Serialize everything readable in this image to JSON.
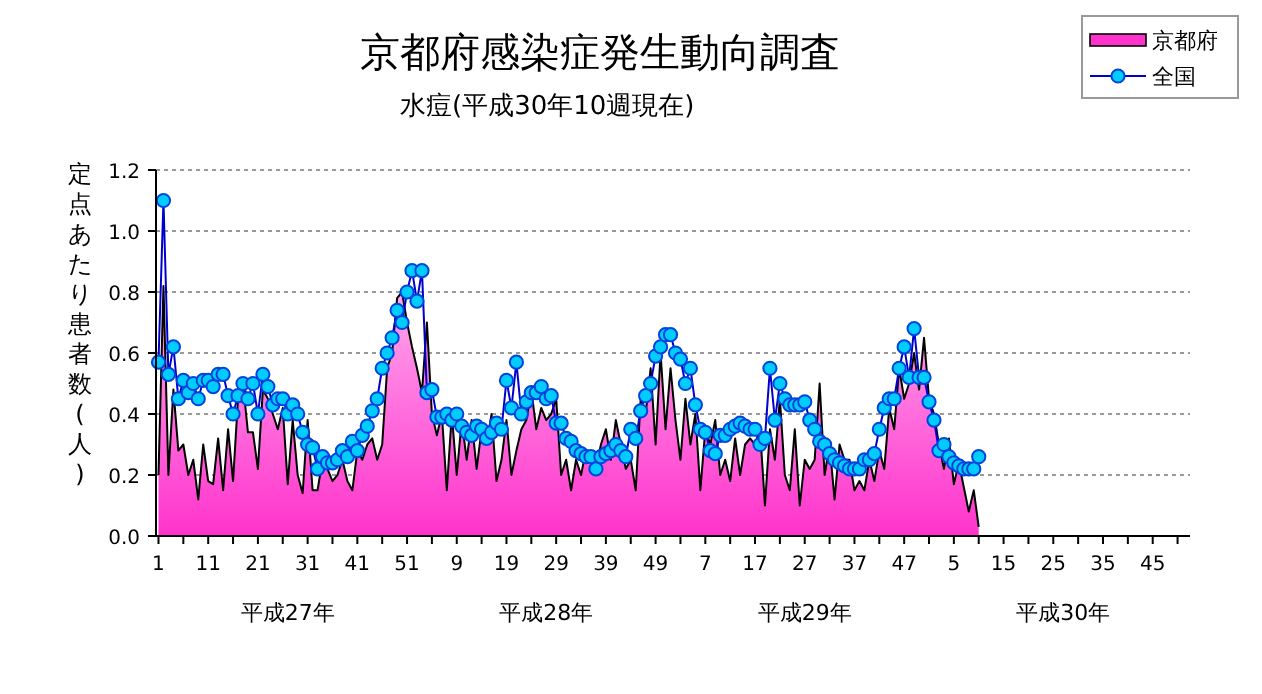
{
  "chart_data": {
    "type": "line",
    "title": "京都府感染症発生動向調査",
    "subtitle": "水痘(平成30年10週現在)",
    "ylabel": "定点あたり患者数(人)",
    "annotations": [
      "平成27年",
      "平成28年",
      "平成29年",
      "平成30年"
    ],
    "categories": [
      "1",
      null,
      null,
      null,
      null,
      null,
      null,
      null,
      null,
      null,
      "11",
      null,
      null,
      null,
      null,
      null,
      null,
      null,
      null,
      null,
      "21",
      null,
      null,
      null,
      null,
      null,
      null,
      null,
      null,
      null,
      "31",
      null,
      null,
      null,
      null,
      null,
      null,
      null,
      null,
      null,
      "41",
      null,
      null,
      null,
      null,
      null,
      null,
      null,
      null,
      null,
      "51",
      null,
      null,
      null,
      null,
      null,
      null,
      null,
      null,
      null,
      "9",
      null,
      null,
      null,
      null,
      null,
      null,
      null,
      null,
      null,
      "19",
      null,
      null,
      null,
      null,
      null,
      null,
      null,
      null,
      null,
      "29",
      null,
      null,
      null,
      null,
      null,
      null,
      null,
      null,
      null,
      "39",
      null,
      null,
      null,
      null,
      null,
      null,
      null,
      null,
      null,
      "49",
      null,
      null,
      null,
      null,
      null,
      null,
      null,
      null,
      null,
      "7",
      null,
      null,
      null,
      null,
      null,
      null,
      null,
      null,
      null,
      "17",
      null,
      null,
      null,
      null,
      null,
      null,
      null,
      null,
      null,
      "27",
      null,
      null,
      null,
      null,
      null,
      null,
      null,
      null,
      null,
      "37",
      null,
      null,
      null,
      null,
      null,
      null,
      null,
      null,
      null,
      "47",
      null,
      null,
      null,
      null,
      null,
      null,
      null,
      null,
      null,
      "5",
      null,
      null,
      null,
      null,
      null,
      null,
      null,
      null,
      null,
      "15",
      null,
      null,
      null,
      null,
      null,
      null,
      null,
      null,
      null,
      "25",
      null,
      null,
      null,
      null,
      null,
      null,
      null,
      null,
      null,
      "35",
      null,
      null,
      null,
      null,
      null,
      null,
      null,
      null,
      null,
      "45",
      null,
      null,
      null,
      null,
      null,
      null,
      null
    ],
    "series": [
      {
        "name": "京都府",
        "type": "area",
        "color": "#ff33cc",
        "values": [
          0.2,
          0.82,
          0.2,
          0.48,
          0.28,
          0.3,
          0.2,
          0.25,
          0.12,
          0.3,
          0.18,
          0.17,
          0.32,
          0.15,
          0.35,
          0.18,
          0.45,
          0.5,
          0.34,
          0.34,
          0.22,
          0.48,
          0.45,
          0.4,
          0.35,
          0.42,
          0.17,
          0.38,
          0.2,
          0.14,
          0.38,
          0.15,
          0.15,
          0.25,
          0.22,
          0.18,
          0.2,
          0.25,
          0.18,
          0.15,
          0.28,
          0.25,
          0.3,
          0.32,
          0.25,
          0.3,
          0.55,
          0.6,
          0.78,
          0.8,
          0.7,
          0.62,
          0.55,
          0.47,
          0.7,
          0.4,
          0.33,
          0.4,
          0.15,
          0.4,
          0.2,
          0.38,
          0.25,
          0.38,
          0.22,
          0.35,
          0.3,
          0.4,
          0.18,
          0.25,
          0.38,
          0.2,
          0.28,
          0.35,
          0.38,
          0.48,
          0.35,
          0.42,
          0.38,
          0.4,
          0.45,
          0.2,
          0.25,
          0.15,
          0.25,
          0.2,
          0.28,
          0.25,
          0.22,
          0.3,
          0.35,
          0.25,
          0.38,
          0.3,
          0.22,
          0.25,
          0.15,
          0.45,
          0.4,
          0.55,
          0.3,
          0.6,
          0.35,
          0.55,
          0.38,
          0.25,
          0.45,
          0.3,
          0.4,
          0.15,
          0.35,
          0.3,
          0.38,
          0.2,
          0.25,
          0.18,
          0.32,
          0.2,
          0.3,
          0.32,
          0.3,
          0.35,
          0.1,
          0.35,
          0.25,
          0.45,
          0.2,
          0.15,
          0.35,
          0.1,
          0.25,
          0.22,
          0.25,
          0.5,
          0.2,
          0.3,
          0.12,
          0.3,
          0.25,
          0.25,
          0.15,
          0.18,
          0.15,
          0.25,
          0.18,
          0.28,
          0.22,
          0.42,
          0.35,
          0.55,
          0.45,
          0.5,
          0.6,
          0.48,
          0.65,
          0.45,
          0.4,
          0.3,
          0.22,
          0.32,
          0.17,
          0.24,
          0.16,
          0.08,
          0.15,
          0.03,
          null,
          null,
          null,
          null,
          null,
          null,
          null,
          null,
          null,
          null,
          null,
          null,
          null,
          null,
          null,
          null,
          null,
          null,
          null,
          null,
          null,
          null,
          null,
          null,
          null,
          null,
          null,
          null,
          null,
          null,
          null,
          null,
          null,
          null,
          null,
          null,
          null,
          null,
          null,
          null,
          null,
          null
        ]
      },
      {
        "name": "全国",
        "type": "line",
        "color": "#00ccff",
        "marker": "circle",
        "values": [
          0.57,
          1.1,
          0.53,
          0.62,
          0.45,
          0.51,
          0.47,
          0.5,
          0.45,
          0.51,
          0.51,
          0.49,
          0.53,
          0.53,
          0.46,
          0.4,
          0.46,
          0.5,
          0.45,
          0.5,
          0.4,
          0.53,
          0.49,
          0.43,
          0.45,
          0.45,
          0.4,
          0.43,
          0.4,
          0.34,
          0.3,
          0.29,
          0.22,
          0.26,
          0.24,
          0.24,
          0.25,
          0.28,
          0.26,
          0.31,
          0.28,
          0.33,
          0.36,
          0.41,
          0.45,
          0.55,
          0.6,
          0.65,
          0.74,
          0.7,
          0.8,
          0.87,
          0.77,
          0.87,
          0.47,
          0.48,
          0.39,
          0.39,
          0.4,
          0.38,
          0.4,
          0.36,
          0.34,
          0.33,
          0.36,
          0.35,
          0.32,
          0.34,
          0.37,
          0.35,
          0.51,
          0.42,
          0.57,
          0.4,
          0.44,
          0.47,
          0.47,
          0.49,
          0.45,
          0.46,
          0.37,
          0.37,
          0.32,
          0.31,
          0.28,
          0.27,
          0.26,
          0.26,
          0.22,
          0.26,
          0.27,
          0.28,
          0.3,
          0.28,
          0.26,
          0.35,
          0.32,
          0.41,
          0.46,
          0.5,
          0.59,
          0.62,
          0.66,
          0.66,
          0.6,
          0.58,
          0.5,
          0.55,
          0.43,
          0.35,
          0.34,
          0.28,
          0.27,
          0.33,
          0.33,
          0.35,
          0.36,
          0.37,
          0.36,
          0.35,
          0.35,
          0.3,
          0.32,
          0.55,
          0.38,
          0.5,
          0.45,
          0.43,
          0.43,
          0.43,
          0.44,
          0.38,
          0.35,
          0.31,
          0.3,
          0.27,
          0.25,
          0.24,
          0.23,
          0.22,
          0.22,
          0.22,
          0.25,
          0.25,
          0.27,
          0.35,
          0.42,
          0.45,
          0.45,
          0.55,
          0.62,
          0.52,
          0.68,
          0.52,
          0.52,
          0.44,
          0.38,
          0.28,
          0.3,
          0.26,
          0.24,
          0.23,
          0.22,
          0.22,
          0.22,
          0.26,
          null,
          null,
          null,
          null,
          null,
          null,
          null,
          null,
          null,
          null,
          null,
          null,
          null,
          null,
          null,
          null,
          null,
          null,
          null,
          null,
          null,
          null,
          null,
          null,
          null,
          null,
          null,
          null,
          null,
          null,
          null,
          null,
          null,
          null,
          null,
          null,
          null,
          null,
          null,
          null,
          null,
          null
        ]
      }
    ],
    "ylim": [
      0,
      1.2
    ],
    "yticks": [
      {
        "value": 0,
        "label": "0.0"
      },
      {
        "value": 0.2,
        "label": "0.2"
      },
      {
        "value": 0.4,
        "label": "0.4"
      },
      {
        "value": 0.6,
        "label": "0.6"
      },
      {
        "value": 0.8,
        "label": "0.8"
      },
      {
        "value": 1,
        "label": "1.0"
      },
      {
        "value": 1.2,
        "label": "1.2"
      }
    ],
    "grid": "y",
    "legend": "top right"
  }
}
